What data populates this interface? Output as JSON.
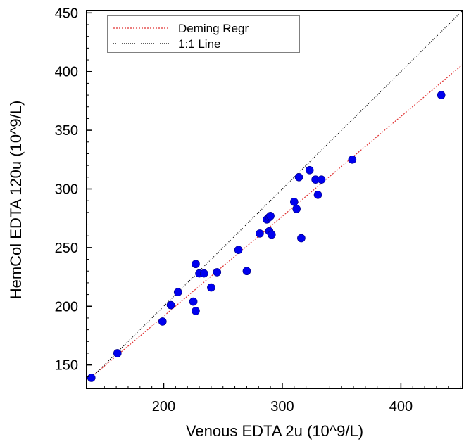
{
  "chart_data": {
    "type": "scatter",
    "xlabel": "Venous EDTA 2u (10^9/L)",
    "ylabel": "HemCol EDTA 120u (10^9/L)",
    "xlim": [
      135,
      452
    ],
    "ylim": [
      130,
      452
    ],
    "x_ticks": [
      200,
      300,
      400
    ],
    "y_ticks": [
      150,
      200,
      250,
      300,
      350,
      400,
      450
    ],
    "tick_labels_x": [
      "200",
      "300",
      "400"
    ],
    "tick_labels_y": [
      "150",
      "200",
      "250",
      "300",
      "350",
      "400",
      "450"
    ],
    "grid": false,
    "legend_position": "top-left",
    "legend": [
      {
        "label": "Deming Regr",
        "style": "dotted",
        "color": "#e03030"
      },
      {
        "label": "1:1 Line",
        "style": "dotted",
        "color": "#000000"
      }
    ],
    "point_color": "#0000ee",
    "points": [
      {
        "x": 139,
        "y": 139
      },
      {
        "x": 161,
        "y": 160
      },
      {
        "x": 199,
        "y": 187
      },
      {
        "x": 206,
        "y": 201
      },
      {
        "x": 212,
        "y": 212
      },
      {
        "x": 225,
        "y": 204
      },
      {
        "x": 227,
        "y": 196
      },
      {
        "x": 227,
        "y": 236
      },
      {
        "x": 230,
        "y": 228
      },
      {
        "x": 234,
        "y": 228
      },
      {
        "x": 240,
        "y": 216
      },
      {
        "x": 245,
        "y": 229
      },
      {
        "x": 263,
        "y": 248
      },
      {
        "x": 270,
        "y": 230
      },
      {
        "x": 281,
        "y": 262
      },
      {
        "x": 287,
        "y": 274
      },
      {
        "x": 289,
        "y": 276
      },
      {
        "x": 290,
        "y": 277
      },
      {
        "x": 289,
        "y": 264
      },
      {
        "x": 291,
        "y": 261
      },
      {
        "x": 310,
        "y": 289
      },
      {
        "x": 312,
        "y": 283
      },
      {
        "x": 314,
        "y": 310
      },
      {
        "x": 316,
        "y": 258
      },
      {
        "x": 323,
        "y": 316
      },
      {
        "x": 328,
        "y": 308
      },
      {
        "x": 330,
        "y": 295
      },
      {
        "x": 333,
        "y": 308
      },
      {
        "x": 359,
        "y": 325
      },
      {
        "x": 434,
        "y": 380
      }
    ],
    "lines": [
      {
        "name": "Deming Regr",
        "x": [
          137,
          452
        ],
        "y": [
          138,
          406
        ],
        "color": "#e03030"
      },
      {
        "name": "1:1 Line",
        "x": [
          137,
          452
        ],
        "y": [
          137,
          452
        ],
        "color": "#000000"
      }
    ]
  }
}
